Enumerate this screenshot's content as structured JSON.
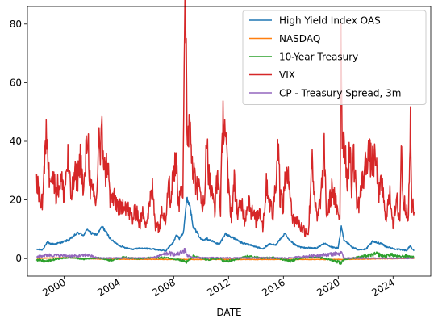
{
  "chart_data": {
    "type": "line",
    "xlabel": "DATE",
    "ylabel": "",
    "xlim": [
      "1997-05-01",
      "2026-10-01"
    ],
    "ylim": [
      -6,
      86
    ],
    "x_ticks": [
      {
        "date": "2000-01-01",
        "label": "2000"
      },
      {
        "date": "2004-01-01",
        "label": "2004"
      },
      {
        "date": "2008-01-01",
        "label": "2008"
      },
      {
        "date": "2012-01-01",
        "label": "2012"
      },
      {
        "date": "2016-01-01",
        "label": "2016"
      },
      {
        "date": "2020-01-01",
        "label": "2020"
      },
      {
        "date": "2024-01-01",
        "label": "2024"
      }
    ],
    "y_ticks": [
      0,
      20,
      40,
      60,
      80
    ],
    "legend_position": "top-right",
    "grid": false,
    "series": [
      {
        "name": "High Yield Index OAS",
        "color": "#1f77b4",
        "points": [
          [
            "1997-12-31",
            3.1
          ],
          [
            "1998-06-01",
            3.0
          ],
          [
            "1998-10-15",
            5.5
          ],
          [
            "1999-01-01",
            5.0
          ],
          [
            "1999-06-01",
            5.0
          ],
          [
            "2000-01-01",
            5.8
          ],
          [
            "2000-06-01",
            6.5
          ],
          [
            "2000-12-31",
            8.8
          ],
          [
            "2001-06-01",
            8.0
          ],
          [
            "2001-09-25",
            10.0
          ],
          [
            "2002-01-01",
            8.5
          ],
          [
            "2002-06-01",
            8.2
          ],
          [
            "2002-10-10",
            10.9
          ],
          [
            "2003-01-01",
            9.5
          ],
          [
            "2003-06-01",
            6.5
          ],
          [
            "2003-12-31",
            4.5
          ],
          [
            "2004-06-01",
            3.8
          ],
          [
            "2004-12-31",
            3.2
          ],
          [
            "2005-06-01",
            3.5
          ],
          [
            "2005-12-31",
            3.4
          ],
          [
            "2006-06-01",
            3.3
          ],
          [
            "2007-06-01",
            2.6
          ],
          [
            "2007-12-31",
            5.8
          ],
          [
            "2008-03-15",
            8.0
          ],
          [
            "2008-06-01",
            6.8
          ],
          [
            "2008-09-15",
            9.0
          ],
          [
            "2008-12-15",
            20.5
          ],
          [
            "2009-03-10",
            18.0
          ],
          [
            "2009-06-01",
            11.0
          ],
          [
            "2009-12-31",
            6.5
          ],
          [
            "2010-06-01",
            6.8
          ],
          [
            "2010-12-31",
            5.5
          ],
          [
            "2011-05-01",
            4.8
          ],
          [
            "2011-10-04",
            8.5
          ],
          [
            "2012-06-01",
            6.8
          ],
          [
            "2012-12-31",
            5.3
          ],
          [
            "2013-06-01",
            4.9
          ],
          [
            "2014-06-15",
            3.3
          ],
          [
            "2014-12-31",
            4.9
          ],
          [
            "2015-06-01",
            4.6
          ],
          [
            "2016-02-11",
            8.5
          ],
          [
            "2016-06-01",
            6.2
          ],
          [
            "2016-12-31",
            4.2
          ],
          [
            "2017-06-01",
            3.7
          ],
          [
            "2018-06-01",
            3.5
          ],
          [
            "2018-12-31",
            5.3
          ],
          [
            "2019-06-01",
            4.0
          ],
          [
            "2019-12-31",
            3.5
          ],
          [
            "2020-03-23",
            10.9
          ],
          [
            "2020-06-01",
            6.5
          ],
          [
            "2020-12-31",
            3.9
          ],
          [
            "2021-06-01",
            3.1
          ],
          [
            "2021-12-31",
            3.1
          ],
          [
            "2022-07-05",
            5.8
          ],
          [
            "2022-10-15",
            5.4
          ],
          [
            "2023-03-15",
            5.2
          ],
          [
            "2023-06-01",
            4.2
          ],
          [
            "2023-12-31",
            3.4
          ],
          [
            "2024-06-01",
            3.1
          ],
          [
            "2024-12-31",
            2.8
          ],
          [
            "2025-04-08",
            4.5
          ],
          [
            "2025-06-01",
            3.0
          ],
          [
            "2025-07-15",
            2.8
          ]
        ]
      },
      {
        "name": "NASDAQ",
        "color": "#ff7f0e",
        "points": [
          [
            "1997-12-31",
            0.1
          ],
          [
            "2000-03-10",
            0.3
          ],
          [
            "2002-10-09",
            -0.2
          ],
          [
            "2008-11-20",
            -0.3
          ],
          [
            "2020-03-20",
            -0.3
          ],
          [
            "2025-07-15",
            0.1
          ]
        ]
      },
      {
        "name": "10-Year Treasury",
        "color": "#2ca02c",
        "points": [
          [
            "1997-12-31",
            -0.5
          ],
          [
            "1998-10-01",
            -1.0
          ],
          [
            "1999-06-01",
            -0.2
          ],
          [
            "2000-06-01",
            0.4
          ],
          [
            "2001-06-01",
            -0.2
          ],
          [
            "2002-06-01",
            0.3
          ],
          [
            "2003-06-01",
            -0.6
          ],
          [
            "2004-06-01",
            0.5
          ],
          [
            "2005-06-01",
            -0.1
          ],
          [
            "2006-06-01",
            0.3
          ],
          [
            "2007-06-01",
            0.3
          ],
          [
            "2008-06-01",
            -0.4
          ],
          [
            "2008-12-20",
            -1.2
          ],
          [
            "2009-06-01",
            0.8
          ],
          [
            "2010-06-01",
            -0.4
          ],
          [
            "2011-06-01",
            0.0
          ],
          [
            "2011-09-20",
            -1.1
          ],
          [
            "2012-06-01",
            -0.5
          ],
          [
            "2013-06-01",
            0.8
          ],
          [
            "2014-06-01",
            0.2
          ],
          [
            "2015-06-01",
            0.3
          ],
          [
            "2016-07-01",
            -0.9
          ],
          [
            "2017-06-01",
            0.4
          ],
          [
            "2018-06-01",
            0.6
          ],
          [
            "2019-08-15",
            -0.6
          ],
          [
            "2020-03-15",
            -1.4
          ],
          [
            "2020-06-01",
            -0.3
          ],
          [
            "2021-06-01",
            0.4
          ],
          [
            "2022-06-01",
            1.2
          ],
          [
            "2022-10-20",
            1.6
          ],
          [
            "2023-06-01",
            0.8
          ],
          [
            "2023-10-20",
            1.4
          ],
          [
            "2024-06-01",
            0.6
          ],
          [
            "2024-12-31",
            0.9
          ],
          [
            "2025-07-15",
            0.4
          ]
        ]
      },
      {
        "name": "VIX",
        "color": "#d62728",
        "points": [
          [
            "1997-12-31",
            28.5
          ],
          [
            "1998-03-01",
            21.0
          ],
          [
            "1998-06-01",
            19.5
          ],
          [
            "1998-09-01",
            38.0
          ],
          [
            "1998-10-08",
            45.5
          ],
          [
            "1998-11-15",
            28.0
          ],
          [
            "1999-01-15",
            31.0
          ],
          [
            "1999-06-01",
            23.0
          ],
          [
            "1999-10-15",
            27.0
          ],
          [
            "1999-12-31",
            22.0
          ],
          [
            "2000-04-14",
            34.0
          ],
          [
            "2000-07-01",
            21.0
          ],
          [
            "2000-10-15",
            28.0
          ],
          [
            "2000-12-31",
            28.0
          ],
          [
            "2001-03-22",
            35.0
          ],
          [
            "2001-06-01",
            21.0
          ],
          [
            "2001-09-20",
            43.5
          ],
          [
            "2001-12-01",
            24.0
          ],
          [
            "2002-03-01",
            21.0
          ],
          [
            "2002-05-15",
            19.0
          ],
          [
            "2002-07-23",
            45.0
          ],
          [
            "2002-08-15",
            33.0
          ],
          [
            "2002-10-07",
            42.5
          ],
          [
            "2002-12-31",
            28.5
          ],
          [
            "2003-03-11",
            34.5
          ],
          [
            "2003-05-01",
            21.0
          ],
          [
            "2003-09-01",
            20.0
          ],
          [
            "2003-12-31",
            18.0
          ],
          [
            "2004-03-01",
            16.0
          ],
          [
            "2004-05-10",
            20.0
          ],
          [
            "2004-08-15",
            17.0
          ],
          [
            "2004-12-31",
            13.5
          ],
          [
            "2005-04-20",
            17.0
          ],
          [
            "2005-07-01",
            11.5
          ],
          [
            "2005-10-20",
            16.0
          ],
          [
            "2005-12-31",
            12.0
          ],
          [
            "2006-06-13",
            23.5
          ],
          [
            "2006-09-01",
            12.0
          ],
          [
            "2006-12-31",
            11.0
          ],
          [
            "2007-02-27",
            18.5
          ],
          [
            "2007-06-01",
            13.0
          ],
          [
            "2007-08-16",
            30.5
          ],
          [
            "2007-10-01",
            18.0
          ],
          [
            "2007-11-26",
            28.0
          ],
          [
            "2008-01-22",
            31.0
          ],
          [
            "2008-03-17",
            32.0
          ],
          [
            "2008-05-15",
            17.5
          ],
          [
            "2008-07-15",
            28.5
          ],
          [
            "2008-09-01",
            22.0
          ],
          [
            "2008-10-27",
            80.0
          ],
          [
            "2008-11-20",
            80.9
          ],
          [
            "2008-12-31",
            40.0
          ],
          [
            "2009-03-09",
            49.5
          ],
          [
            "2009-06-01",
            30.0
          ],
          [
            "2009-09-01",
            25.0
          ],
          [
            "2009-12-31",
            21.5
          ],
          [
            "2010-04-01",
            16.5
          ],
          [
            "2010-05-20",
            45.8
          ],
          [
            "2010-07-01",
            32.0
          ],
          [
            "2010-09-01",
            24.0
          ],
          [
            "2010-12-31",
            17.5
          ],
          [
            "2011-03-16",
            29.0
          ],
          [
            "2011-06-01",
            17.5
          ],
          [
            "2011-08-08",
            48.0
          ],
          [
            "2011-10-03",
            45.5
          ],
          [
            "2011-12-31",
            23.0
          ],
          [
            "2012-03-15",
            15.0
          ],
          [
            "2012-06-01",
            26.0
          ],
          [
            "2012-09-01",
            15.0
          ],
          [
            "2012-12-31",
            19.0
          ],
          [
            "2013-03-01",
            13.5
          ],
          [
            "2013-06-20",
            20.5
          ],
          [
            "2013-09-01",
            16.0
          ],
          [
            "2013-12-31",
            13.0
          ],
          [
            "2014-04-15",
            17.0
          ],
          [
            "2014-07-01",
            11.0
          ],
          [
            "2014-10-15",
            26.0
          ],
          [
            "2014-12-31",
            19.0
          ],
          [
            "2015-04-01",
            14.5
          ],
          [
            "2015-08-24",
            40.7
          ],
          [
            "2015-10-01",
            22.0
          ],
          [
            "2015-12-31",
            18.0
          ],
          [
            "2016-02-11",
            28.0
          ],
          [
            "2016-06-24",
            25.8
          ],
          [
            "2016-09-01",
            13.0
          ],
          [
            "2016-12-31",
            13.0
          ],
          [
            "2017-06-01",
            10.0
          ],
          [
            "2017-11-03",
            9.1
          ],
          [
            "2018-02-05",
            37.3
          ],
          [
            "2018-04-01",
            20.0
          ],
          [
            "2018-07-01",
            13.0
          ],
          [
            "2018-10-25",
            25.0
          ],
          [
            "2018-12-24",
            36.1
          ],
          [
            "2019-03-01",
            14.0
          ],
          [
            "2019-08-05",
            24.5
          ],
          [
            "2019-12-31",
            13.8
          ],
          [
            "2020-02-15",
            14.0
          ],
          [
            "2020-03-16",
            82.7
          ],
          [
            "2020-04-15",
            41.0
          ],
          [
            "2020-06-11",
            41.0
          ],
          [
            "2020-09-01",
            26.0
          ],
          [
            "2020-10-30",
            38.0
          ],
          [
            "2020-12-31",
            22.5
          ],
          [
            "2021-01-27",
            37.2
          ],
          [
            "2021-06-01",
            17.0
          ],
          [
            "2021-12-01",
            30.0
          ],
          [
            "2022-03-07",
            36.5
          ],
          [
            "2022-06-01",
            33.0
          ],
          [
            "2022-09-30",
            33.0
          ],
          [
            "2022-12-31",
            21.7
          ],
          [
            "2023-03-13",
            26.5
          ],
          [
            "2023-06-01",
            14.0
          ],
          [
            "2023-10-20",
            21.5
          ],
          [
            "2023-12-31",
            12.5
          ],
          [
            "2024-04-19",
            19.0
          ],
          [
            "2024-07-01",
            12.5
          ],
          [
            "2024-08-05",
            38.6
          ],
          [
            "2024-10-01",
            19.0
          ],
          [
            "2024-12-31",
            17.0
          ],
          [
            "2025-02-15",
            15.0
          ],
          [
            "2025-04-08",
            45.3
          ],
          [
            "2025-05-15",
            18.0
          ],
          [
            "2025-07-15",
            16.0
          ]
        ]
      },
      {
        "name": "CP - Treasury Spread, 3m",
        "color": "#9467bd",
        "points": [
          [
            "1997-12-31",
            0.6
          ],
          [
            "1998-10-15",
            1.2
          ],
          [
            "1999-12-31",
            1.0
          ],
          [
            "2000-12-31",
            0.8
          ],
          [
            "2001-09-20",
            1.3
          ],
          [
            "2002-06-01",
            0.2
          ],
          [
            "2004-06-01",
            0.2
          ],
          [
            "2006-06-01",
            0.2
          ],
          [
            "2007-08-20",
            1.8
          ],
          [
            "2007-12-15",
            1.5
          ],
          [
            "2008-03-15",
            1.3
          ],
          [
            "2008-09-17",
            2.3
          ],
          [
            "2008-10-10",
            3.6
          ],
          [
            "2008-12-31",
            1.0
          ],
          [
            "2009-06-01",
            0.3
          ],
          [
            "2012-06-01",
            0.2
          ],
          [
            "2016-06-01",
            0.2
          ],
          [
            "2020-03-23",
            1.8
          ],
          [
            "2020-06-01",
            0.2
          ],
          [
            "2023-06-01",
            0.1
          ],
          [
            "2025-07-15",
            0.1
          ]
        ]
      }
    ]
  }
}
